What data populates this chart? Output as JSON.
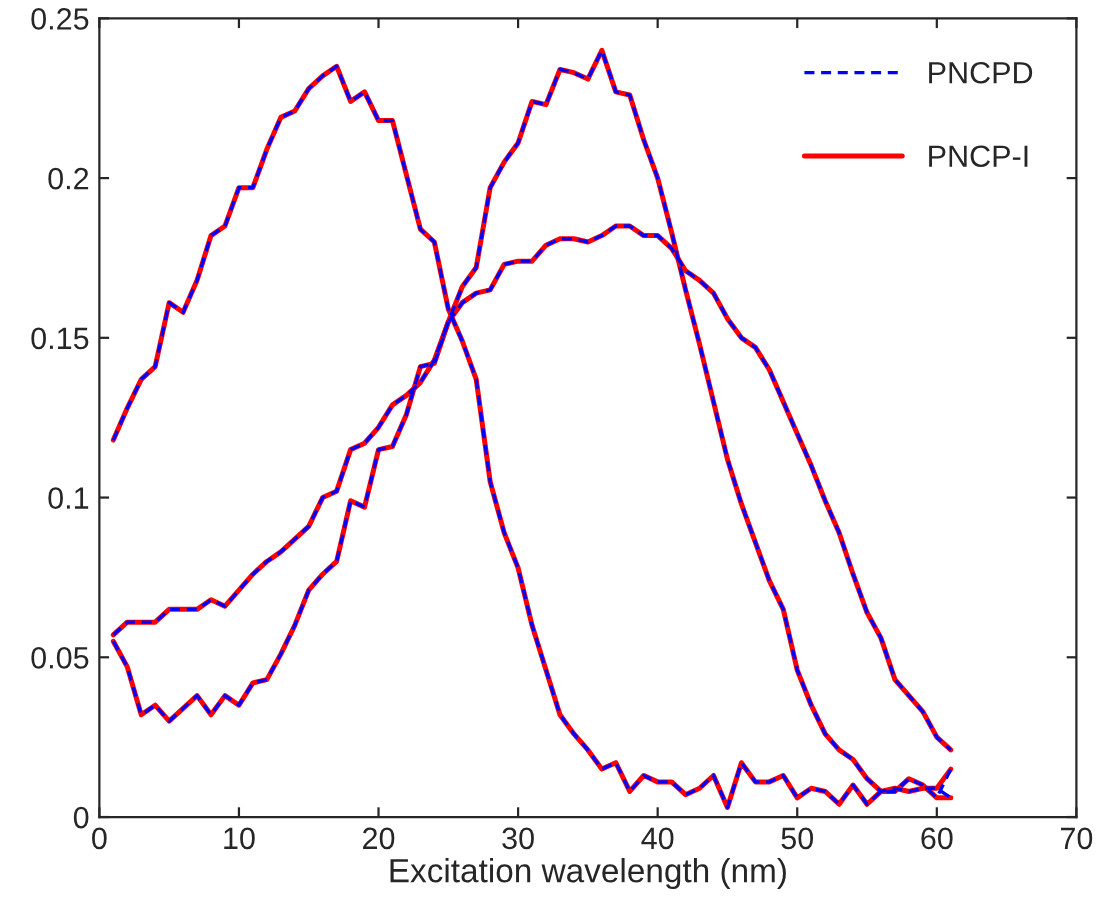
{
  "chart_data": {
    "type": "line",
    "xlabel": "Excitation wavelength (nm)",
    "x": [
      1,
      2,
      3,
      4,
      5,
      6,
      7,
      8,
      9,
      10,
      11,
      12,
      13,
      14,
      15,
      16,
      17,
      18,
      19,
      20,
      21,
      22,
      23,
      24,
      25,
      26,
      27,
      28,
      29,
      30,
      31,
      32,
      33,
      34,
      35,
      36,
      37,
      38,
      39,
      40,
      41,
      42,
      43,
      44,
      45,
      46,
      47,
      48,
      49,
      50,
      51,
      52,
      53,
      54,
      55,
      56,
      57,
      58,
      59,
      60,
      61
    ],
    "series": [
      {
        "name": "PNCPD",
        "color": "#0000ff",
        "line_style": "dashed",
        "values": [
          0.118,
          0.128,
          0.137,
          0.141,
          0.161,
          0.158,
          0.168,
          0.182,
          0.185,
          0.197,
          0.197,
          0.209,
          0.219,
          0.221,
          0.228,
          0.232,
          0.235,
          0.224,
          0.227,
          0.218,
          0.218,
          0.201,
          0.184,
          0.18,
          0.159,
          0.149,
          0.137,
          0.105,
          0.089,
          0.078,
          0.06,
          0.046,
          0.032,
          0.026,
          0.021,
          0.015,
          0.017,
          0.008,
          0.013,
          0.011,
          0.011,
          0.007,
          0.009,
          0.013,
          0.003,
          0.017,
          0.011,
          0.011,
          0.013,
          0.006,
          0.009,
          0.008,
          0.004,
          0.01,
          0.004,
          0.008,
          0.008,
          0.012,
          0.01,
          0.006,
          0.015
        ]
      },
      {
        "color": "#0000ff",
        "line_style": "dashed",
        "values": [
          0.055,
          0.047,
          0.032,
          0.035,
          0.03,
          0.034,
          0.038,
          0.032,
          0.038,
          0.035,
          0.042,
          0.043,
          0.051,
          0.06,
          0.071,
          0.076,
          0.08,
          0.099,
          0.097,
          0.115,
          0.116,
          0.126,
          0.141,
          0.142,
          0.155,
          0.166,
          0.172,
          0.197,
          0.205,
          0.211,
          0.224,
          0.223,
          0.234,
          0.233,
          0.231,
          0.24,
          0.227,
          0.226,
          0.212,
          0.2,
          0.183,
          0.165,
          0.148,
          0.13,
          0.112,
          0.098,
          0.086,
          0.074,
          0.065,
          0.046,
          0.035,
          0.026,
          0.021,
          0.018,
          0.012,
          0.008,
          0.009,
          0.008,
          0.009,
          0.009,
          0.006
        ]
      },
      {
        "color": "#0000ff",
        "line_style": "dashed",
        "values": [
          0.057,
          0.061,
          0.061,
          0.061,
          0.065,
          0.065,
          0.065,
          0.068,
          0.066,
          0.071,
          0.076,
          0.08,
          0.083,
          0.087,
          0.091,
          0.1,
          0.102,
          0.115,
          0.117,
          0.122,
          0.129,
          0.132,
          0.136,
          0.143,
          0.155,
          0.161,
          0.164,
          0.165,
          0.173,
          0.174,
          0.174,
          0.179,
          0.181,
          0.181,
          0.18,
          0.182,
          0.185,
          0.185,
          0.182,
          0.182,
          0.178,
          0.171,
          0.168,
          0.164,
          0.156,
          0.15,
          0.147,
          0.14,
          0.13,
          0.12,
          0.11,
          0.099,
          0.089,
          0.076,
          0.064,
          0.056,
          0.043,
          0.038,
          0.033,
          0.025,
          0.021
        ]
      },
      {
        "name": "PNCP-I",
        "color": "#ff0000",
        "line_style": "solid",
        "values": [
          0.118,
          0.128,
          0.137,
          0.141,
          0.161,
          0.158,
          0.168,
          0.182,
          0.185,
          0.197,
          0.197,
          0.209,
          0.219,
          0.221,
          0.228,
          0.232,
          0.235,
          0.224,
          0.227,
          0.218,
          0.218,
          0.201,
          0.184,
          0.18,
          0.159,
          0.149,
          0.137,
          0.105,
          0.089,
          0.078,
          0.06,
          0.046,
          0.032,
          0.026,
          0.021,
          0.015,
          0.017,
          0.008,
          0.013,
          0.011,
          0.011,
          0.007,
          0.009,
          0.013,
          0.003,
          0.017,
          0.011,
          0.011,
          0.013,
          0.006,
          0.009,
          0.008,
          0.004,
          0.01,
          0.004,
          0.008,
          0.008,
          0.012,
          0.01,
          0.006,
          0.006
        ]
      },
      {
        "color": "#ff0000",
        "line_style": "solid",
        "values": [
          0.055,
          0.047,
          0.032,
          0.035,
          0.03,
          0.034,
          0.038,
          0.032,
          0.038,
          0.035,
          0.042,
          0.043,
          0.051,
          0.06,
          0.071,
          0.076,
          0.08,
          0.099,
          0.097,
          0.115,
          0.116,
          0.126,
          0.141,
          0.142,
          0.155,
          0.166,
          0.172,
          0.197,
          0.205,
          0.211,
          0.224,
          0.223,
          0.234,
          0.233,
          0.231,
          0.24,
          0.227,
          0.226,
          0.212,
          0.2,
          0.183,
          0.165,
          0.148,
          0.13,
          0.112,
          0.098,
          0.086,
          0.074,
          0.065,
          0.046,
          0.035,
          0.026,
          0.021,
          0.018,
          0.012,
          0.008,
          0.009,
          0.008,
          0.009,
          0.009,
          0.015
        ]
      },
      {
        "color": "#ff0000",
        "line_style": "solid",
        "values": [
          0.057,
          0.061,
          0.061,
          0.061,
          0.065,
          0.065,
          0.065,
          0.068,
          0.066,
          0.071,
          0.076,
          0.08,
          0.083,
          0.087,
          0.091,
          0.1,
          0.102,
          0.115,
          0.117,
          0.122,
          0.129,
          0.132,
          0.136,
          0.143,
          0.155,
          0.161,
          0.164,
          0.165,
          0.173,
          0.174,
          0.174,
          0.179,
          0.181,
          0.181,
          0.18,
          0.182,
          0.185,
          0.185,
          0.182,
          0.182,
          0.178,
          0.171,
          0.168,
          0.164,
          0.156,
          0.15,
          0.147,
          0.14,
          0.13,
          0.12,
          0.11,
          0.099,
          0.089,
          0.076,
          0.064,
          0.056,
          0.043,
          0.038,
          0.033,
          0.025,
          0.021
        ]
      }
    ],
    "xlim": [
      0,
      70
    ],
    "xticks": [
      0,
      10,
      20,
      30,
      40,
      50,
      60,
      70
    ],
    "ylim": [
      0,
      0.25
    ],
    "yticks": [
      0,
      0.05,
      0.1,
      0.15,
      0.2,
      0.25
    ],
    "grid": false,
    "legend": "top right"
  }
}
